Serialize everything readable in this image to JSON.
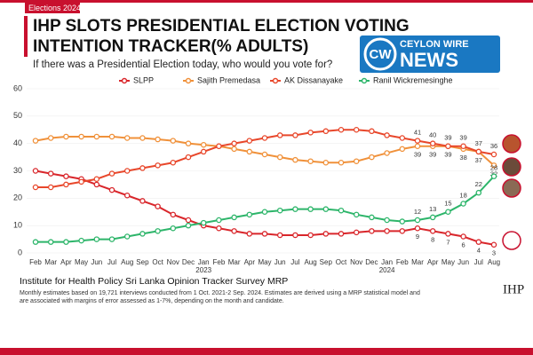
{
  "tag": "Elections 2024",
  "logo": {
    "mark": "CW",
    "top": "CEYLON WIRE",
    "bottom": "NEWS"
  },
  "footer": {
    "source": "Institute for Health Policy Sri Lanka Opinion Tracker Survey MRP",
    "note": [
      "Monthly estimates based on 19,721 interviews conducted from 1 Oct. 2021-2 Sep. 2024. Estimates are derived using a MRP statistical model and",
      "are associated with margins of error assessed as 1-7%, depending on the month and candidate."
    ],
    "brand": "IHP"
  },
  "chart_data": {
    "type": "line",
    "title": [
      "IHP SLOTS PRESIDENTIAL ELECTION VOTING",
      "INTENTION TRACKER(% ADULTS)"
    ],
    "subtitle": "If there was a Presidential Election today, who would you vote for?",
    "categories": [
      "Feb",
      "Mar",
      "Apr",
      "May",
      "Jun",
      "Jul",
      "Aug",
      "Sep",
      "Oct",
      "Nov",
      "Dec",
      "Jan",
      "Feb",
      "Mar",
      "Apr",
      "May",
      "Jun",
      "Jul",
      "Aug",
      "Sep",
      "Oct",
      "Nov",
      "Dec",
      "Jan",
      "Feb",
      "Mar",
      "Apr",
      "May",
      "Jun",
      "Jul",
      "Aug"
    ],
    "year_labels": [
      "2023",
      "2024"
    ],
    "ylim": [
      0,
      60
    ],
    "yticks": [
      0,
      10,
      20,
      30,
      40,
      50,
      60
    ],
    "grid": true,
    "series": [
      {
        "name": "SLPP",
        "color": "#d9262b",
        "values": [
          30,
          29,
          28,
          27,
          25,
          23,
          21,
          19,
          17,
          14,
          12,
          10,
          9,
          8,
          7,
          7,
          6.5,
          6.5,
          6.5,
          7,
          7,
          7.5,
          8,
          8,
          8,
          9,
          8,
          7,
          6,
          4,
          3
        ]
      },
      {
        "name": "Sajith Premedasa",
        "color": "#f0913a",
        "values": [
          41,
          42,
          42.5,
          42.5,
          42.5,
          42.5,
          42,
          42,
          41.5,
          41,
          40,
          39.5,
          39,
          38,
          37,
          36,
          35,
          34,
          33.5,
          33,
          33,
          33.5,
          35,
          36.5,
          38,
          39,
          39,
          39,
          38,
          37,
          32
        ]
      },
      {
        "name": "AK Dissanayake",
        "color": "#e8472b",
        "values": [
          24,
          24,
          25,
          26,
          27,
          29,
          30,
          31,
          32,
          33,
          35,
          37,
          39,
          40,
          41,
          42,
          43,
          43,
          44,
          44.5,
          45,
          45,
          44.5,
          43,
          42,
          41,
          40,
          39,
          39,
          37,
          36
        ]
      },
      {
        "name": "Ranil Wickremesinghe",
        "color": "#2db56a",
        "values": [
          4,
          4,
          4,
          4.5,
          5,
          5,
          6,
          7,
          8,
          9,
          10,
          11,
          12,
          13,
          14,
          15,
          15.5,
          16,
          16,
          16,
          15.5,
          14,
          13,
          12,
          11.5,
          12,
          13,
          15,
          18,
          22,
          28
        ]
      }
    ]
  }
}
